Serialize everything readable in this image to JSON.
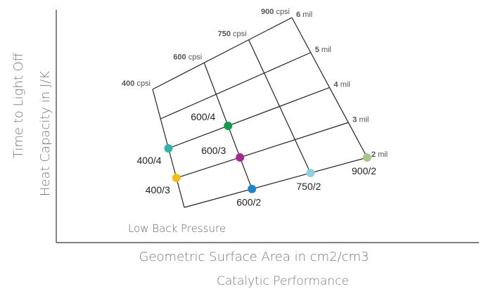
{
  "chart_data": {
    "type": "scatter",
    "title": "",
    "xlabel": "Geometric Surface Area in cm2/cm3",
    "xlabel_secondary": "Catalytic Performance",
    "ylabel": "Heat Capacity in J/K",
    "ylabel_secondary": "Time to Light Off",
    "region_label": "Low Back Pressure",
    "grid": true,
    "cell_density": [
      {
        "value": "400",
        "unit": "cpsi"
      },
      {
        "value": "600",
        "unit": "cpsi"
      },
      {
        "value": "750",
        "unit": "cpsi"
      },
      {
        "value": "900",
        "unit": "cpsi"
      }
    ],
    "wall_thickness": [
      {
        "value": "2",
        "unit": "mil"
      },
      {
        "value": "3",
        "unit": "mil"
      },
      {
        "value": "4",
        "unit": "mil"
      },
      {
        "value": "5",
        "unit": "mil"
      },
      {
        "value": "6",
        "unit": "mil"
      }
    ],
    "points": [
      {
        "label": "400/3",
        "cpsi": 400,
        "mil": 3,
        "color": "#f2bd1d"
      },
      {
        "label": "400/4",
        "cpsi": 400,
        "mil": 4,
        "color": "#35b3a8"
      },
      {
        "label": "600/2",
        "cpsi": 600,
        "mil": 2,
        "color": "#1e86c8"
      },
      {
        "label": "600/3",
        "cpsi": 600,
        "mil": 3,
        "color": "#a52a8f"
      },
      {
        "label": "600/4",
        "cpsi": 600,
        "mil": 4,
        "color": "#139a4a"
      },
      {
        "label": "750/2",
        "cpsi": 750,
        "mil": 2,
        "color": "#8fd0e0"
      },
      {
        "label": "900/2",
        "cpsi": 900,
        "mil": 2,
        "color": "#a9c48f"
      }
    ]
  }
}
